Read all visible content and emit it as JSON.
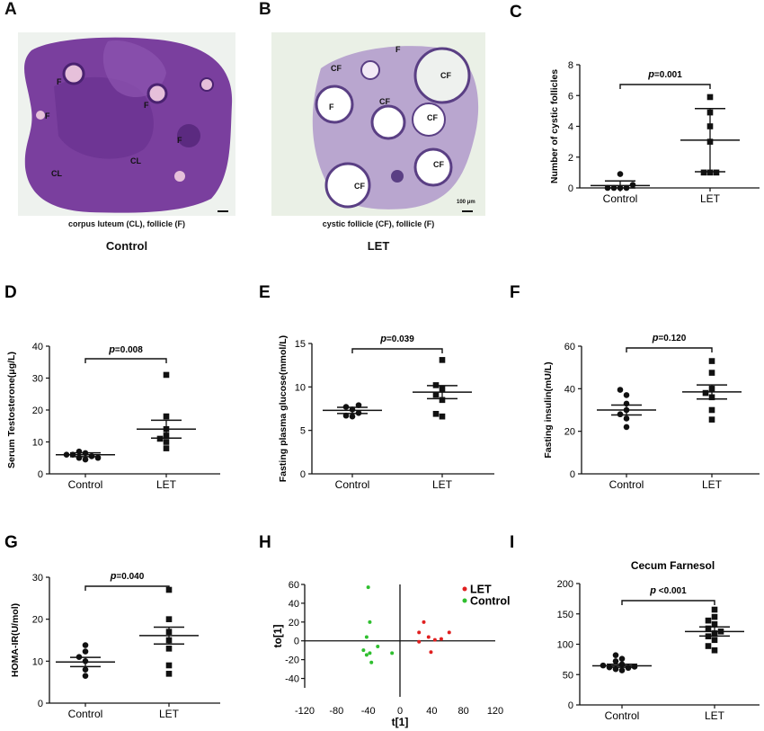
{
  "panels": {
    "A": {
      "letter": "A",
      "caption": "corpus luteum (CL), follicle (F)",
      "group_label": "Control",
      "labels": [
        "F",
        "F",
        "F",
        "F",
        "CL",
        "CL"
      ]
    },
    "B": {
      "letter": "B",
      "caption": "cystic follicle (CF), follicle (F)",
      "group_label": "LET",
      "labels": [
        "CF",
        "CF",
        "CF",
        "CF",
        "CF",
        "CF",
        "F",
        "F"
      ],
      "scale_bar": "100 μm"
    }
  },
  "colors": {
    "control_pts": "#2fbf2f",
    "let_pts": "#e02020",
    "marks": "#111111",
    "a_tissue": "#7a3f9e",
    "b_tissue": "#b9a6cf"
  },
  "chart_data": [
    {
      "letter": "C",
      "type": "scatter",
      "title": "",
      "ylabel": "Number of cystic follicles",
      "ylim": [
        0,
        8
      ],
      "yticks": [
        0,
        2,
        4,
        6,
        8
      ],
      "categories": [
        "Control",
        "LET"
      ],
      "groups": [
        {
          "name": "Control",
          "marker": "circle",
          "values": [
            0,
            0,
            0,
            0,
            0.2,
            0.9
          ],
          "mean": 0.15,
          "err": 0.3
        },
        {
          "name": "LET",
          "marker": "square",
          "values": [
            1,
            1,
            1,
            3,
            4,
            4.9,
            5.9
          ],
          "mean": 3.1,
          "err": 2.05
        }
      ],
      "p_label": "p",
      "p_text": "=0.001"
    },
    {
      "letter": "D",
      "type": "scatter",
      "title": "",
      "ylabel": "Serum Testosterone(μg/L)",
      "ylim": [
        0,
        40
      ],
      "yticks": [
        0,
        10,
        20,
        30,
        40
      ],
      "categories": [
        "Control",
        "LET"
      ],
      "groups": [
        {
          "name": "Control",
          "marker": "circle",
          "values": [
            4.5,
            5,
            5.5,
            6,
            6.5,
            7,
            5,
            6
          ],
          "mean": 6,
          "err": 0.6
        },
        {
          "name": "LET",
          "marker": "square",
          "values": [
            8,
            10,
            11,
            12,
            14,
            18,
            31
          ],
          "mean": 14,
          "err": 2.8
        }
      ],
      "p_label": "p",
      "p_text": "=0.008"
    },
    {
      "letter": "E",
      "type": "scatter",
      "title": "",
      "ylabel": "Fasting plasma glucose(mmol/L)",
      "ylim": [
        0,
        15
      ],
      "yticks": [
        0,
        5,
        10,
        15
      ],
      "categories": [
        "Control",
        "LET"
      ],
      "groups": [
        {
          "name": "Control",
          "marker": "circle",
          "values": [
            6.6,
            6.7,
            7,
            7.4,
            7.7,
            7.9
          ],
          "mean": 7.3,
          "err": 0.35
        },
        {
          "name": "LET",
          "marker": "square",
          "values": [
            6.6,
            6.9,
            8.5,
            9.1,
            9.8,
            10.2,
            13.1
          ],
          "mean": 9.4,
          "err": 0.75
        },
        {
          "name": "",
          "marker": "none",
          "values": [],
          "mean": 0,
          "err": 0
        }
      ],
      "p_label": "p",
      "p_text": "=0.039"
    },
    {
      "letter": "F",
      "type": "scatter",
      "title": "",
      "ylabel": "Fasting insulin(mU/L)",
      "ylim": [
        0,
        60
      ],
      "yticks": [
        0,
        20,
        40,
        60
      ],
      "categories": [
        "Control",
        "LET"
      ],
      "groups": [
        {
          "name": "Control",
          "marker": "circle",
          "values": [
            22,
            26,
            28,
            30,
            33,
            37,
            39.5
          ],
          "mean": 30,
          "err": 2.3
        },
        {
          "name": "LET",
          "marker": "square",
          "values": [
            25.5,
            30,
            36,
            38,
            40,
            47.5,
            53
          ],
          "mean": 38.5,
          "err": 3.3
        }
      ],
      "p_label": "p",
      "p_text": "=0.120"
    },
    {
      "letter": "G",
      "type": "scatter",
      "title": "",
      "ylabel": "HOMA-IR(U/mol)",
      "ylim": [
        0,
        30
      ],
      "yticks": [
        0,
        10,
        20,
        30
      ],
      "categories": [
        "Control",
        "LET"
      ],
      "groups": [
        {
          "name": "Control",
          "marker": "circle",
          "values": [
            6.5,
            8,
            10,
            11,
            12.3,
            13.8
          ],
          "mean": 9.8,
          "err": 1.1
        },
        {
          "name": "LET",
          "marker": "square",
          "values": [
            7,
            9,
            13,
            15,
            17,
            20,
            27
          ],
          "mean": 16.1,
          "err": 2.0
        }
      ],
      "p_label": "p",
      "p_text": "=0.040"
    },
    {
      "letter": "H",
      "type": "scatter",
      "title": "",
      "xlabel": "t[1]",
      "ylabel": "to[1]",
      "xlim": [
        -120,
        120
      ],
      "ylim": [
        -50,
        60
      ],
      "xticks": [
        -120,
        -80,
        -40,
        0,
        40,
        80,
        120
      ],
      "yticks": [
        -40,
        -20,
        0,
        20,
        40,
        60
      ],
      "series": [
        {
          "name": "LET",
          "color": "#e02020",
          "points": [
            [
              30,
              20
            ],
            [
              24,
              9
            ],
            [
              24,
              -1
            ],
            [
              36,
              4
            ],
            [
              44,
              1
            ],
            [
              52,
              2
            ],
            [
              62,
              9
            ],
            [
              39,
              -12
            ]
          ]
        },
        {
          "name": "Control",
          "color": "#2fbf2f",
          "points": [
            [
              -40,
              57
            ],
            [
              -38,
              20
            ],
            [
              -42,
              4
            ],
            [
              -46,
              -10
            ],
            [
              -38,
              -13
            ],
            [
              -36,
              -23
            ],
            [
              -28,
              -6
            ],
            [
              -10,
              -13
            ],
            [
              -42,
              -15
            ]
          ]
        }
      ]
    },
    {
      "letter": "I",
      "type": "scatter",
      "title": "Cecum Farnesol",
      "ylabel": "",
      "ylim": [
        0,
        200
      ],
      "yticks": [
        0,
        50,
        100,
        150,
        200
      ],
      "categories": [
        "Control",
        "LET"
      ],
      "groups": [
        {
          "name": "Control",
          "marker": "circle",
          "values": [
            57,
            59,
            61,
            62,
            63,
            65,
            67,
            72,
            76,
            82
          ],
          "mean": 64.5,
          "err": 2.5
        },
        {
          "name": "LET",
          "marker": "square",
          "values": [
            90,
            97,
            107,
            113,
            118,
            121,
            126,
            133,
            139,
            145,
            157
          ],
          "mean": 121,
          "err": 7.5
        }
      ],
      "p_label": "p",
      "p_text": " <0.001"
    }
  ]
}
